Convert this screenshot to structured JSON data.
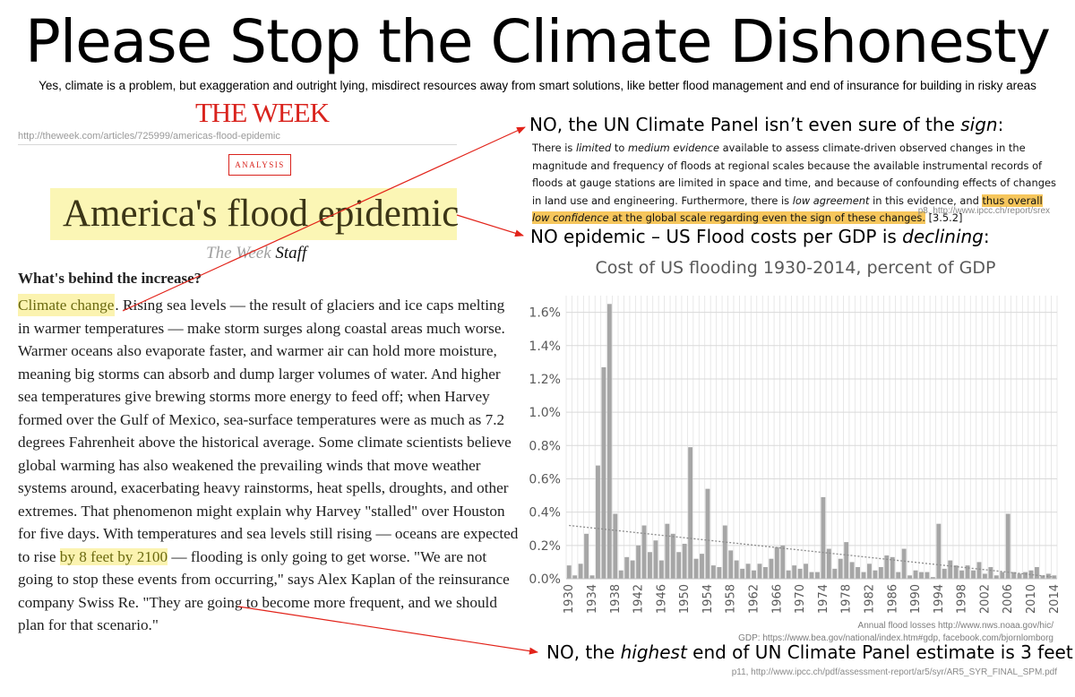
{
  "page": {
    "title": "Please Stop the Climate Dishonesty",
    "subtitle": "Yes, climate is a problem, but exaggeration and outright lying, misdirect resources away from smart solutions, like better flood management and end of insurance for building in risky areas"
  },
  "article": {
    "masthead": "THE WEEK",
    "url": "http://theweek.com/articles/725999/americas-flood-epidemic",
    "badge": "ANALYSIS",
    "headline": "America's flood epidemic",
    "byline_publication": "The Week",
    "byline_staff": "Staff",
    "subhead": "What's behind the increase?",
    "body_highlight_1": "Climate change",
    "body_part_1": ". Rising sea levels — the result of glaciers and ice caps melting in warmer temperatures — make storm surges along coastal areas much worse. Warmer oceans also evaporate faster, and warmer air can hold more moisture, meaning big storms can absorb and dump larger volumes of water. And higher sea temperatures give brewing storms more energy to feed off; when Harvey formed over the Gulf of Mexico, sea-surface temperatures were as much as 7.2 degrees Fahrenheit above the historical average. Some climate scientists believe global warming has also weakened the prevailing winds that move weather systems around, exacerbating heavy rainstorms, heat spells, droughts, and other extremes. That phenomenon might explain why Harvey \"stalled\" over Houston for five days. With temperatures and sea levels still rising — oceans are expected to rise ",
    "body_highlight_2": "by 8 feet by 2100",
    "body_part_2": " — flooding is only going to get worse. \"We are not going to stop these events from occurring,\" says Alex Kaplan of the reinsurance company Swiss Re. \"They are going to become more frequent, and we should plan for that scenario.\""
  },
  "ipcc": {
    "heading_prefix": "NO, the UN Climate Panel isn’t even sure of the ",
    "heading_emph": "sign",
    "heading_suffix": ":",
    "quote_a": "There is ",
    "quote_emph_1": "limited",
    "quote_b": " to ",
    "quote_emph_2": "medium evidence",
    "quote_c": " available to assess climate-driven observed changes in the magnitude and frequency of floods at regional scales because the available instrumental records of floods at gauge stations are limited in space and time, and because of confounding effects of changes in land use and engineering. Furthermore, there is ",
    "quote_emph_3": "low agreement",
    "quote_d": " in this evidence, and ",
    "quote_hl_a": "thus overall ",
    "quote_hl_emph": "low confidence",
    "quote_hl_b": " at the global scale regarding even the sign of these changes.",
    "quote_ref": " [3.5.2]",
    "source": "p8, http://www.ipcc.ch/report/srex"
  },
  "epidemic": {
    "heading_prefix": "NO epidemic – US Flood costs per GDP is ",
    "heading_emph": "declining",
    "heading_suffix": ":"
  },
  "chart_data": {
    "type": "bar",
    "title": "Cost of US flooding 1930-2014, percent of GDP",
    "xlabel": "",
    "ylabel": "",
    "ylim": [
      0,
      1.7
    ],
    "yticks": [
      0.0,
      0.2,
      0.4,
      0.6,
      0.8,
      1.0,
      1.2,
      1.4,
      1.6
    ],
    "ytick_labels": [
      "0.0%",
      "0.2%",
      "0.4%",
      "0.6%",
      "0.8%",
      "1.0%",
      "1.2%",
      "1.4%",
      "1.6%"
    ],
    "xtick_labels": [
      "1930",
      "1934",
      "1938",
      "1942",
      "1946",
      "1950",
      "1954",
      "1958",
      "1962",
      "1966",
      "1970",
      "1974",
      "1978",
      "1982",
      "1986",
      "1990",
      "1994",
      "1998",
      "2002",
      "2006",
      "2010",
      "2014"
    ],
    "grid": true,
    "bar_color": "#a6a6a6",
    "trend_color": "#8c8c8c",
    "trendline": {
      "start_year": 1930,
      "start_value": 0.32,
      "end_year": 2014,
      "end_value": 0.01
    },
    "categories": [
      1930,
      1931,
      1932,
      1933,
      1934,
      1935,
      1936,
      1937,
      1938,
      1939,
      1940,
      1941,
      1942,
      1943,
      1944,
      1945,
      1946,
      1947,
      1948,
      1949,
      1950,
      1951,
      1952,
      1953,
      1954,
      1955,
      1956,
      1957,
      1958,
      1959,
      1960,
      1961,
      1962,
      1963,
      1964,
      1965,
      1966,
      1967,
      1968,
      1969,
      1970,
      1971,
      1972,
      1973,
      1974,
      1975,
      1976,
      1977,
      1978,
      1979,
      1980,
      1981,
      1982,
      1983,
      1984,
      1985,
      1986,
      1987,
      1988,
      1989,
      1990,
      1991,
      1992,
      1993,
      1994,
      1995,
      1996,
      1997,
      1998,
      1999,
      2000,
      2001,
      2002,
      2003,
      2004,
      2005,
      2006,
      2007,
      2008,
      2009,
      2010,
      2011,
      2012,
      2013,
      2014
    ],
    "values": [
      0.08,
      0.02,
      0.09,
      0.27,
      0.02,
      0.68,
      1.27,
      1.65,
      0.39,
      0.05,
      0.13,
      0.11,
      0.2,
      0.32,
      0.16,
      0.23,
      0.11,
      0.33,
      0.27,
      0.16,
      0.21,
      0.79,
      0.12,
      0.15,
      0.54,
      0.08,
      0.07,
      0.32,
      0.17,
      0.11,
      0.06,
      0.09,
      0.05,
      0.09,
      0.07,
      0.12,
      0.19,
      0.2,
      0.05,
      0.08,
      0.06,
      0.09,
      0.04,
      0.04,
      0.49,
      0.18,
      0.06,
      0.12,
      0.22,
      0.1,
      0.07,
      0.04,
      0.09,
      0.05,
      0.07,
      0.14,
      0.13,
      0.04,
      0.18,
      0.02,
      0.05,
      0.04,
      0.04,
      0.01,
      0.33,
      0.06,
      0.11,
      0.08,
      0.05,
      0.08,
      0.05,
      0.1,
      0.03,
      0.07,
      0.02,
      0.04,
      0.39,
      0.04,
      0.03,
      0.04,
      0.05,
      0.07,
      0.02,
      0.03,
      0.02
    ]
  },
  "chart_sources": {
    "line1": "Annual flood losses http://www.nws.noaa.gov/hic/",
    "line2": "GDP: https://www.bea.gov/national/index.htm#gdp, facebook.com/bjornlomborg"
  },
  "sealevel": {
    "heading_prefix": "NO, the ",
    "heading_emph": "highest",
    "heading_suffix": " end of UN Climate Panel estimate is 3 feet",
    "source": "p11, http://www.ipcc.ch/pdf/assessment-report/ar5/syr/AR5_SYR_FINAL_SPM.pdf"
  }
}
